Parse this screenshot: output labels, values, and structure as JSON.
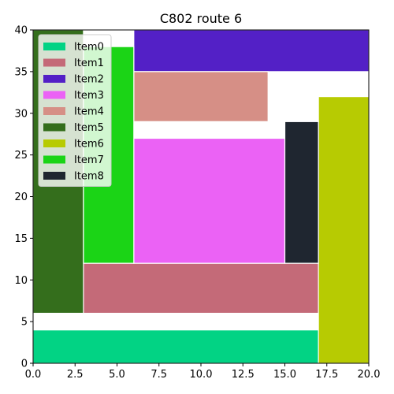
{
  "chart_data": {
    "type": "treemap",
    "title": "C802 route 6",
    "xlim": [
      0,
      20
    ],
    "ylim": [
      0,
      40
    ],
    "x_ticks": [
      "0.0",
      "2.5",
      "5.0",
      "7.5",
      "10.0",
      "12.5",
      "15.0",
      "17.5",
      "20.0"
    ],
    "y_ticks": [
      "0",
      "5",
      "10",
      "15",
      "20",
      "25",
      "30",
      "35",
      "40"
    ],
    "legend_position": "top-left",
    "grid": false,
    "items": [
      {
        "name": "Item0",
        "color": "#02d384",
        "x0": 0,
        "x1": 17,
        "y0": 0,
        "y1": 4
      },
      {
        "name": "Item1",
        "color": "#c46a78",
        "x0": 3,
        "x1": 17,
        "y0": 6,
        "y1": 12
      },
      {
        "name": "Item2",
        "color": "#5320c6",
        "x0": 6,
        "x1": 20,
        "y0": 35,
        "y1": 40
      },
      {
        "name": "Item3",
        "color": "#eb62f5",
        "x0": 6,
        "x1": 15,
        "y0": 12,
        "y1": 27
      },
      {
        "name": "Item4",
        "color": "#d68f86",
        "x0": 6,
        "x1": 14,
        "y0": 29,
        "y1": 35
      },
      {
        "name": "Item5",
        "color": "#346e1c",
        "x0": 0,
        "x1": 3,
        "y0": 6,
        "y1": 40
      },
      {
        "name": "Item6",
        "color": "#b7cb02",
        "x0": 17,
        "x1": 20,
        "y0": 0,
        "y1": 32
      },
      {
        "name": "Item7",
        "color": "#1bd416",
        "x0": 3,
        "x1": 6,
        "y0": 12,
        "y1": 38
      },
      {
        "name": "Item8",
        "color": "#1f2630",
        "x0": 15,
        "x1": 17,
        "y0": 12,
        "y1": 29
      }
    ]
  }
}
